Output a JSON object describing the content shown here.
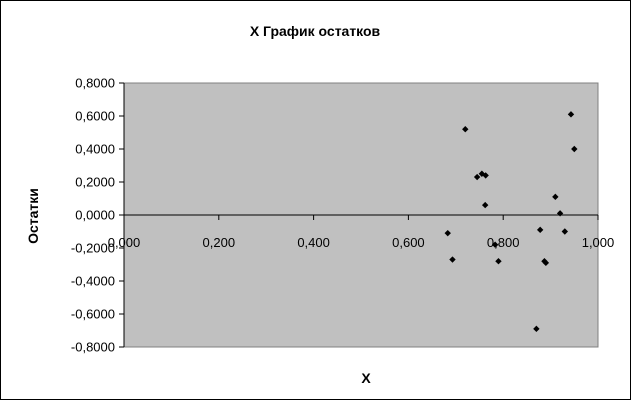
{
  "chart_data": {
    "type": "scatter",
    "title": "X График остатков",
    "xlabel": "X",
    "ylabel": "Остатки",
    "xlim": [
      0,
      1.0
    ],
    "ylim": [
      -0.8,
      0.8
    ],
    "x_ticks": [
      "0,000",
      "0,200",
      "0,400",
      "0,600",
      "0,800",
      "1,000"
    ],
    "y_ticks": [
      "0,8000",
      "0,6000",
      "0,4000",
      "0,2000",
      "0,0000",
      "-0,2000",
      "-0,4000",
      "-0,6000",
      "-0,8000"
    ],
    "grid": false,
    "legend": "none",
    "plot_background": "#c0c0c0",
    "marker_color": "#000000",
    "series": [
      {
        "points": [
          {
            "x": 0.683,
            "y": -0.11
          },
          {
            "x": 0.693,
            "y": -0.27
          },
          {
            "x": 0.72,
            "y": 0.52
          },
          {
            "x": 0.745,
            "y": 0.23
          },
          {
            "x": 0.755,
            "y": 0.25
          },
          {
            "x": 0.763,
            "y": 0.24
          },
          {
            "x": 0.762,
            "y": 0.06
          },
          {
            "x": 0.783,
            "y": -0.18
          },
          {
            "x": 0.79,
            "y": -0.28
          },
          {
            "x": 0.87,
            "y": -0.69
          },
          {
            "x": 0.878,
            "y": -0.09
          },
          {
            "x": 0.887,
            "y": -0.28
          },
          {
            "x": 0.89,
            "y": -0.29
          },
          {
            "x": 0.91,
            "y": 0.11
          },
          {
            "x": 0.92,
            "y": 0.01
          },
          {
            "x": 0.93,
            "y": -0.1
          },
          {
            "x": 0.943,
            "y": 0.61
          },
          {
            "x": 0.95,
            "y": 0.4
          }
        ]
      }
    ]
  }
}
